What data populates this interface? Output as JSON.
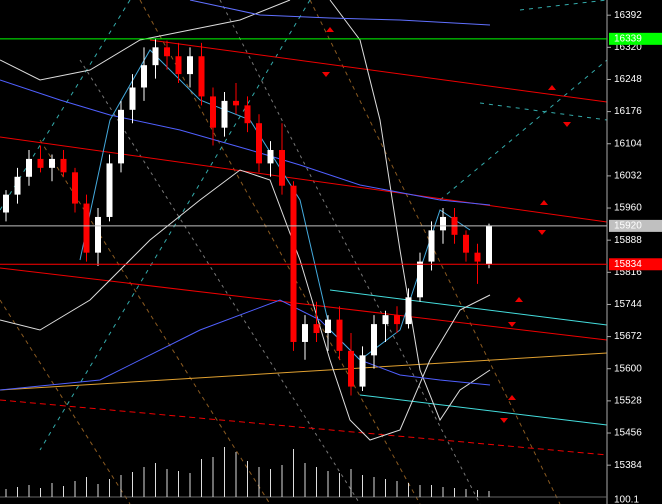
{
  "chart_data": {
    "type": "candlestick",
    "ohlc": [
      [
        15950,
        16000,
        15930,
        15990
      ],
      [
        15990,
        16050,
        15970,
        16030
      ],
      [
        16030,
        16090,
        16010,
        16070
      ],
      [
        16070,
        16100,
        16040,
        16050
      ],
      [
        16050,
        16080,
        16020,
        16070
      ],
      [
        16070,
        16090,
        16030,
        16040
      ],
      [
        16040,
        16050,
        15950,
        15970
      ],
      [
        15970,
        15990,
        15840,
        15860
      ],
      [
        15860,
        15960,
        15830,
        15940
      ],
      [
        15940,
        16080,
        15930,
        16060
      ],
      [
        16060,
        16200,
        16040,
        16180
      ],
      [
        16180,
        16260,
        16150,
        16230
      ],
      [
        16230,
        16320,
        16200,
        16280
      ],
      [
        16280,
        16340,
        16250,
        16320
      ],
      [
        16320,
        16335,
        16270,
        16300
      ],
      [
        16300,
        16330,
        16240,
        16260
      ],
      [
        16260,
        16320,
        16230,
        16300
      ],
      [
        16300,
        16330,
        16190,
        16210
      ],
      [
        16210,
        16230,
        16100,
        16140
      ],
      [
        16140,
        16220,
        16120,
        16200
      ],
      [
        16200,
        16240,
        16170,
        16190
      ],
      [
        16190,
        16210,
        16130,
        16150
      ],
      [
        16150,
        16170,
        16040,
        16060
      ],
      [
        16060,
        16110,
        16030,
        16090
      ],
      [
        16090,
        16150,
        15990,
        16010
      ],
      [
        16010,
        16020,
        15640,
        15660
      ],
      [
        15660,
        15720,
        15620,
        15700
      ],
      [
        15700,
        15750,
        15660,
        15680
      ],
      [
        15680,
        15720,
        15640,
        15710
      ],
      [
        15710,
        15740,
        15620,
        15640
      ],
      [
        15640,
        15680,
        15540,
        15560
      ],
      [
        15560,
        15650,
        15550,
        15630
      ],
      [
        15630,
        15720,
        15600,
        15700
      ],
      [
        15700,
        15730,
        15660,
        15720
      ],
      [
        15720,
        15740,
        15680,
        15700
      ],
      [
        15700,
        15780,
        15690,
        15760
      ],
      [
        15760,
        15860,
        15750,
        15840
      ],
      [
        15840,
        15930,
        15820,
        15910
      ],
      [
        15910,
        15960,
        15880,
        15940
      ],
      [
        15940,
        15960,
        15880,
        15900
      ],
      [
        15900,
        15910,
        15840,
        15860
      ],
      [
        15860,
        15880,
        15790,
        15840
      ],
      [
        15834,
        15925,
        15825,
        15920
      ]
    ],
    "volumes": [
      8,
      10,
      12,
      9,
      14,
      11,
      16,
      20,
      13,
      18,
      22,
      25,
      30,
      34,
      28,
      26,
      24,
      38,
      40,
      50,
      45,
      36,
      30,
      28,
      32,
      48,
      34,
      30,
      26,
      24,
      28,
      22,
      20,
      18,
      16,
      14,
      12,
      12,
      10,
      9,
      8,
      7,
      6
    ],
    "up_color": "#ffffff",
    "down_color": "#ff0000",
    "ylim": [
      15297,
      16426
    ],
    "yticks": [
      16392,
      16320,
      16248,
      16176,
      16104,
      16032,
      15960,
      15888,
      15816,
      15744,
      15672,
      15600,
      15528,
      15456,
      15384
    ],
    "levels": [
      {
        "value": 16339,
        "color": "#00ff00"
      },
      {
        "value": 15920,
        "color": "#c0c0c0"
      },
      {
        "value": 15834,
        "color": "#ff0000"
      }
    ],
    "volume_label": "100.1"
  }
}
